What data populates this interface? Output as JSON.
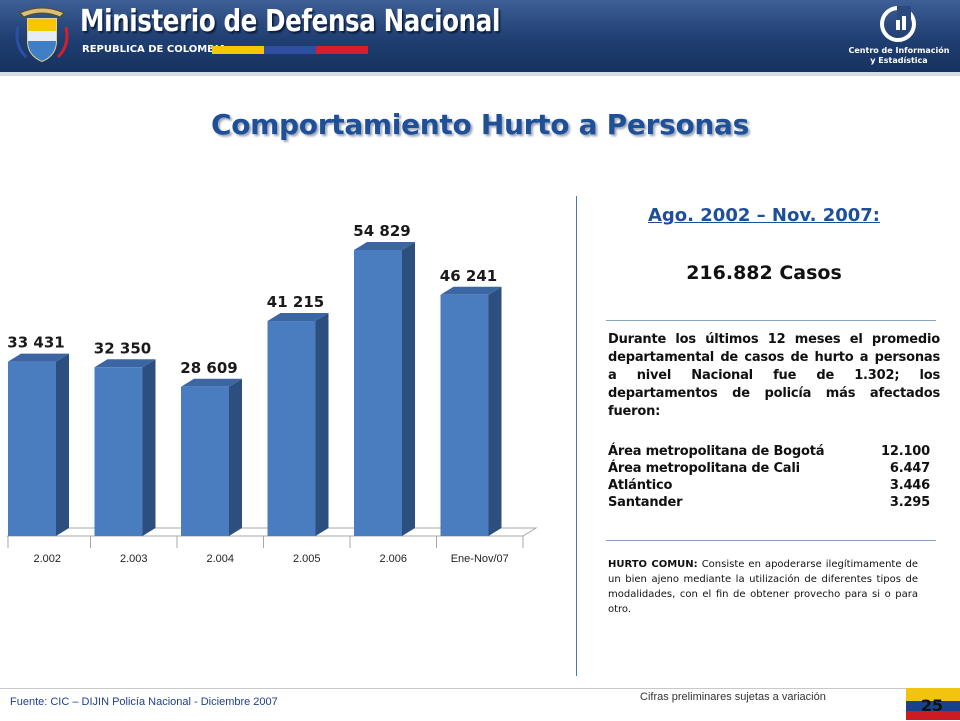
{
  "header": {
    "ministry_title": "Ministerio de Defensa Nacional",
    "republic": "REPUBLICA DE COLOMBIA",
    "center_line1": "Centro de Información",
    "center_line2": "y Estadística",
    "crest_icon": "coat-of-arms-icon",
    "center_icon": "statistics-center-logo-icon",
    "flag_colors": [
      "#f7c600",
      "#2d4ea3",
      "#d4202a"
    ]
  },
  "title": "Comportamiento Hurto a Personas",
  "chart_data": {
    "type": "bar",
    "categories": [
      "2.002",
      "2.003",
      "2.004",
      "2.005",
      "2.006",
      "Ene-Nov/07"
    ],
    "values": [
      33431,
      32350,
      28609,
      41215,
      54829,
      46241
    ],
    "value_labels": [
      "33 431",
      "32 350",
      "28 609",
      "41 215",
      "54 829",
      "46 241"
    ],
    "ylim": [
      0,
      60000
    ],
    "grid": false,
    "legend": "none",
    "colors": {
      "front": "#4a7cc0",
      "side": "#2d4f7f",
      "top": "#3b65a3"
    }
  },
  "side_panel": {
    "period": "Ago. 2002 – Nov. 2007:",
    "cases": "216.882 Casos",
    "summary": "Durante los últimos 12 meses el promedio departamental de casos de hurto a personas a nivel Nacional fue de 1.302; los departamentos de policía más afectados fueron:",
    "departments": [
      {
        "name": "Área metropolitana de Bogotá",
        "value": "12.100"
      },
      {
        "name": "Área metropolitana de Cali",
        "value": "6.447"
      },
      {
        "name": "Atlántico",
        "value": "3.446"
      },
      {
        "name": "Santander",
        "value": "3.295"
      }
    ],
    "definition_term": "HURTO COMUN:",
    "definition_text": " Consiste en apoderarse ilegítimamente de un bien ajeno mediante la utilización de diferentes tipos de modalidades, con el fin de obtener provecho para si o para otro."
  },
  "footer": {
    "source": "Fuente: CIC – DIJIN Policía Nacional   - Diciembre 2007",
    "preliminary": "Cifras preliminares sujetas a variación",
    "page_number": "25"
  }
}
